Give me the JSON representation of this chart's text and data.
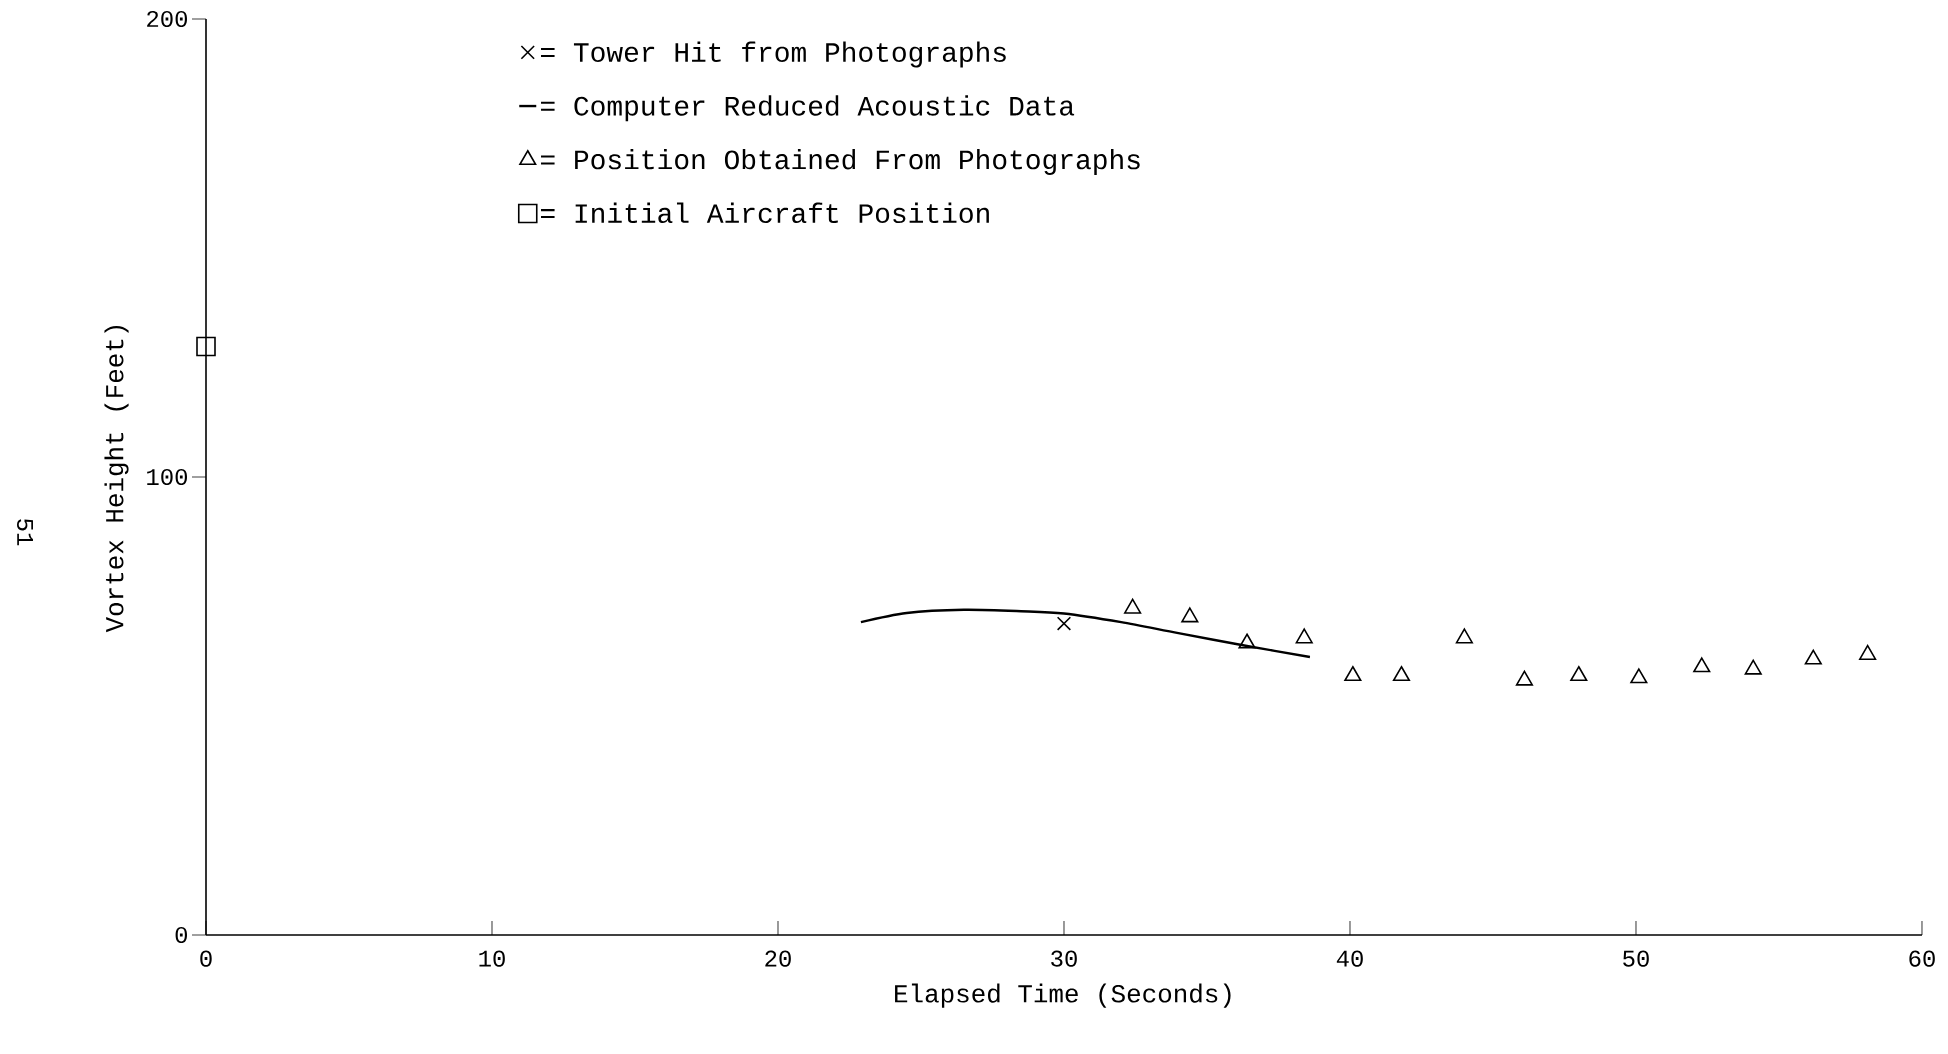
{
  "chart_data": {
    "type": "scatter",
    "xlabel": "Elapsed Time (Seconds)",
    "ylabel": "Vortex Height (Feet)",
    "xlim": [
      0,
      60
    ],
    "xticks": [
      0,
      10,
      20,
      30,
      40,
      50,
      60
    ],
    "ylim": [
      0,
      200
    ],
    "yticks": [
      0,
      100,
      200
    ],
    "grid": false,
    "legend": "top left",
    "annotations": [
      "51"
    ],
    "series": [
      {
        "name": "= Tower Hit from Photographs",
        "marker": "cross",
        "color": "#000000",
        "x": [
          30.0
        ],
        "values": [
          68.0
        ]
      },
      {
        "name": "= Computer Reduced Acoustic Data",
        "type": "line",
        "marker": "none",
        "line_style": "solid",
        "color": "#000000",
        "x": [
          22.9,
          24.5,
          26.5,
          28.5,
          30.0,
          32.0,
          34.0,
          36.4,
          38.6
        ],
        "values": [
          68.3,
          70.3,
          71.0,
          70.7,
          70.2,
          68.3,
          65.9,
          63.1,
          60.7
        ]
      },
      {
        "name": "= Position Obtained From Photographs",
        "marker": "triangle",
        "color": "#000000",
        "x": [
          32.4,
          34.4,
          36.4,
          38.4,
          40.1,
          41.8,
          44.0,
          46.1,
          48.0,
          50.1,
          52.3,
          54.1,
          56.2,
          58.1
        ],
        "values": [
          71.3,
          69.4,
          63.7,
          64.8,
          56.6,
          56.6,
          64.8,
          55.6,
          56.6,
          56.1,
          58.5,
          58.0,
          60.2,
          61.2
        ]
      },
      {
        "name": "= Initial Aircraft Position",
        "marker": "square",
        "color": "#000000",
        "x": [
          0
        ],
        "values": [
          128.5
        ]
      }
    ]
  }
}
